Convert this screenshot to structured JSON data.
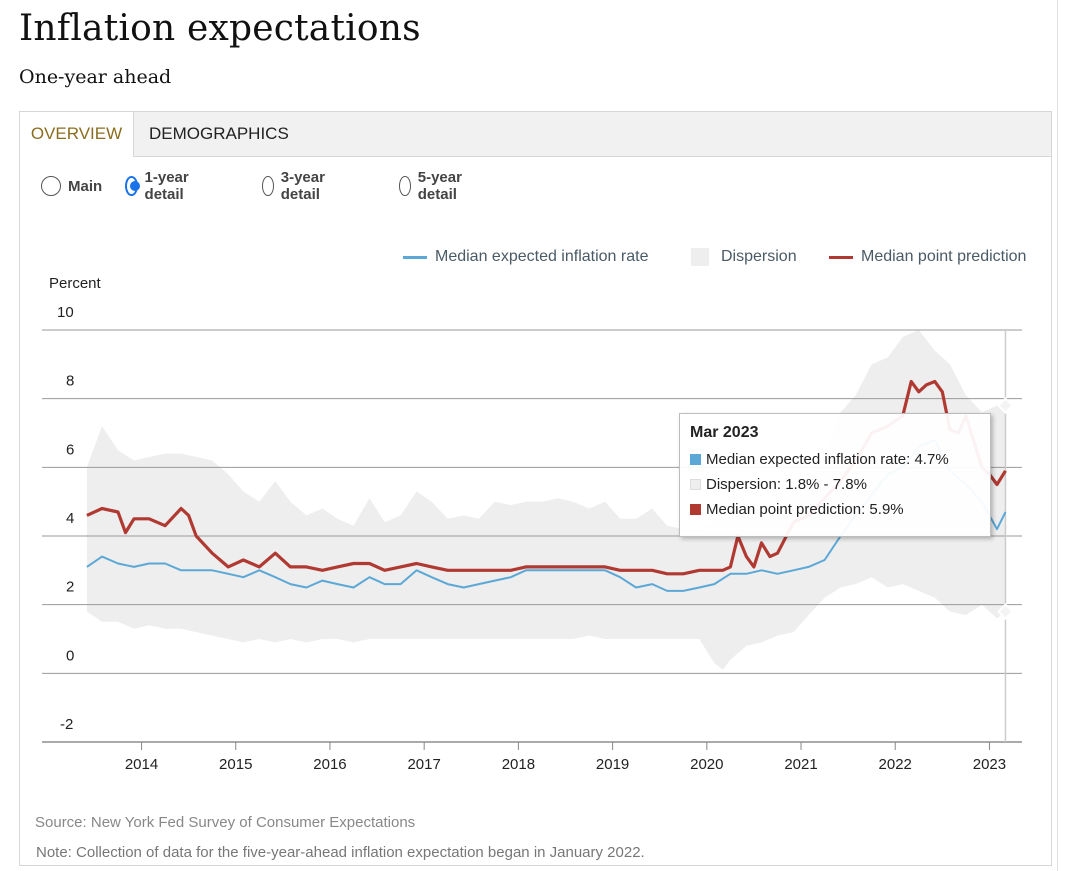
{
  "header": {
    "title": "Inflation expectations",
    "subtitle": "One-year ahead"
  },
  "tabs": [
    {
      "label": "OVERVIEW",
      "active": true
    },
    {
      "label": "DEMOGRAPHICS",
      "active": false
    }
  ],
  "radios": [
    {
      "label": "Main",
      "checked": false
    },
    {
      "label": "1-year detail",
      "checked": true
    },
    {
      "label": "3-year detail",
      "checked": false
    },
    {
      "label": "5-year detail",
      "checked": false
    }
  ],
  "colors": {
    "median_expected": "#5ba8d6",
    "dispersion": "#eeeeee",
    "median_point": "#b03a32",
    "active_tab": "#8a6d1e",
    "radio_accent": "#1a73e8"
  },
  "tooltip": {
    "title": "Mar 2023",
    "rows": [
      {
        "text": "Median expected inflation rate: 4.7%",
        "color": "#5ba8d6"
      },
      {
        "text": "Dispersion: 1.8% - 7.8%",
        "color": "#eeeeee"
      },
      {
        "text": "Median point prediction: 5.9%",
        "color": "#b03a32"
      }
    ]
  },
  "footer": {
    "source": "Source: New York Fed Survey of Consumer Expectations",
    "note": "Note: Collection of data for the five-year-ahead inflation expectation began in January 2022."
  },
  "chart_data": {
    "type": "line",
    "title": "",
    "ylabel": "Percent",
    "xlabel": "",
    "ylim": [
      -2,
      10
    ],
    "xlim": [
      2013.4,
      2023.25
    ],
    "yticks": [
      "10",
      "8",
      "6",
      "4",
      "2",
      "0",
      "-2"
    ],
    "xticks": [
      "2014",
      "2015",
      "2016",
      "2017",
      "2018",
      "2019",
      "2020",
      "2021",
      "2022",
      "2023"
    ],
    "grid": true,
    "legend_position": "top-right",
    "series": [
      {
        "name": "Median expected inflation rate",
        "x": [
          2013.42,
          2013.58,
          2013.75,
          2013.92,
          2014.08,
          2014.25,
          2014.42,
          2014.58,
          2014.75,
          2014.92,
          2015.08,
          2015.25,
          2015.42,
          2015.58,
          2015.75,
          2015.92,
          2016.08,
          2016.25,
          2016.42,
          2016.58,
          2016.75,
          2016.92,
          2017.08,
          2017.25,
          2017.42,
          2017.58,
          2017.75,
          2017.92,
          2018.08,
          2018.25,
          2018.42,
          2018.58,
          2018.75,
          2018.92,
          2019.08,
          2019.25,
          2019.42,
          2019.58,
          2019.75,
          2019.92,
          2020.08,
          2020.25,
          2020.42,
          2020.58,
          2020.75,
          2020.92,
          2021.08,
          2021.25,
          2021.42,
          2021.58,
          2021.75,
          2021.92,
          2022.08,
          2022.25,
          2022.42,
          2022.58,
          2022.75,
          2022.92,
          2023.08,
          2023.17
        ],
        "values": [
          3.1,
          3.4,
          3.2,
          3.1,
          3.2,
          3.2,
          3.0,
          3.0,
          3.0,
          2.9,
          2.8,
          3.0,
          2.8,
          2.6,
          2.5,
          2.7,
          2.6,
          2.5,
          2.8,
          2.6,
          2.6,
          3.0,
          2.8,
          2.6,
          2.5,
          2.6,
          2.7,
          2.8,
          3.0,
          3.0,
          3.0,
          3.0,
          3.0,
          3.0,
          2.8,
          2.5,
          2.6,
          2.4,
          2.4,
          2.5,
          2.6,
          2.9,
          2.9,
          3.0,
          2.9,
          3.0,
          3.1,
          3.3,
          4.0,
          4.6,
          5.2,
          5.8,
          6.0,
          6.6,
          6.8,
          5.9,
          5.5,
          5.0,
          4.2,
          4.7
        ]
      },
      {
        "name": "Median point prediction",
        "x": [
          2013.42,
          2013.58,
          2013.75,
          2013.83,
          2013.92,
          2014.08,
          2014.25,
          2014.42,
          2014.5,
          2014.58,
          2014.75,
          2014.92,
          2015.08,
          2015.25,
          2015.42,
          2015.58,
          2015.75,
          2015.92,
          2016.08,
          2016.25,
          2016.42,
          2016.58,
          2016.75,
          2016.92,
          2017.08,
          2017.25,
          2017.42,
          2017.58,
          2017.75,
          2017.92,
          2018.08,
          2018.25,
          2018.42,
          2018.58,
          2018.75,
          2018.92,
          2019.08,
          2019.25,
          2019.42,
          2019.58,
          2019.75,
          2019.92,
          2020.08,
          2020.17,
          2020.25,
          2020.33,
          2020.42,
          2020.5,
          2020.58,
          2020.67,
          2020.75,
          2020.92,
          2021.08,
          2021.25,
          2021.42,
          2021.58,
          2021.75,
          2021.92,
          2022.08,
          2022.17,
          2022.25,
          2022.33,
          2022.42,
          2022.5,
          2022.58,
          2022.67,
          2022.75,
          2022.83,
          2022.92,
          2023.0,
          2023.08,
          2023.17
        ],
        "values": [
          4.6,
          4.8,
          4.7,
          4.1,
          4.5,
          4.5,
          4.3,
          4.8,
          4.6,
          4.0,
          3.5,
          3.1,
          3.3,
          3.1,
          3.5,
          3.1,
          3.1,
          3.0,
          3.1,
          3.2,
          3.2,
          3.0,
          3.1,
          3.2,
          3.1,
          3.0,
          3.0,
          3.0,
          3.0,
          3.0,
          3.1,
          3.1,
          3.1,
          3.1,
          3.1,
          3.1,
          3.0,
          3.0,
          3.0,
          2.9,
          2.9,
          3.0,
          3.0,
          3.0,
          3.1,
          4.0,
          3.4,
          3.1,
          3.8,
          3.4,
          3.5,
          4.4,
          4.6,
          5.1,
          5.6,
          6.2,
          7.0,
          7.2,
          7.5,
          8.5,
          8.2,
          8.4,
          8.5,
          8.2,
          7.1,
          7.0,
          7.5,
          6.8,
          6.0,
          5.8,
          5.5,
          5.9
        ]
      }
    ],
    "dispersion": {
      "name": "Dispersion",
      "x": [
        2013.42,
        2013.58,
        2013.75,
        2013.92,
        2014.08,
        2014.25,
        2014.42,
        2014.58,
        2014.75,
        2014.92,
        2015.08,
        2015.25,
        2015.42,
        2015.58,
        2015.75,
        2015.92,
        2016.08,
        2016.25,
        2016.42,
        2016.58,
        2016.75,
        2016.92,
        2017.08,
        2017.25,
        2017.42,
        2017.58,
        2017.75,
        2017.92,
        2018.08,
        2018.25,
        2018.42,
        2018.58,
        2018.75,
        2018.92,
        2019.08,
        2019.25,
        2019.42,
        2019.58,
        2019.75,
        2019.92,
        2020.08,
        2020.17,
        2020.25,
        2020.42,
        2020.58,
        2020.75,
        2020.92,
        2021.08,
        2021.25,
        2021.42,
        2021.58,
        2021.75,
        2021.92,
        2022.08,
        2022.25,
        2022.42,
        2022.58,
        2022.75,
        2022.92,
        2023.08,
        2023.17
      ],
      "upper": [
        6.0,
        7.2,
        6.5,
        6.2,
        6.3,
        6.4,
        6.4,
        6.3,
        6.2,
        5.8,
        5.3,
        5.0,
        5.6,
        5.0,
        4.6,
        4.8,
        4.5,
        4.3,
        5.1,
        4.4,
        4.6,
        5.3,
        5.0,
        4.5,
        4.6,
        4.5,
        5.0,
        4.9,
        5.0,
        5.0,
        5.1,
        5.0,
        4.8,
        5.0,
        4.5,
        4.5,
        4.8,
        4.3,
        4.2,
        4.2,
        4.4,
        4.6,
        5.0,
        4.8,
        4.7,
        4.8,
        5.3,
        5.8,
        6.5,
        7.6,
        8.1,
        9.0,
        9.2,
        9.8,
        10.0,
        9.4,
        9.0,
        8.1,
        7.6,
        7.8,
        7.8
      ],
      "lower": [
        1.8,
        1.5,
        1.5,
        1.3,
        1.4,
        1.3,
        1.3,
        1.2,
        1.1,
        1.0,
        0.9,
        1.0,
        0.9,
        1.0,
        0.9,
        1.0,
        1.0,
        0.9,
        1.0,
        1.0,
        1.0,
        1.0,
        1.0,
        1.0,
        1.0,
        1.0,
        1.0,
        1.0,
        1.0,
        1.0,
        1.0,
        1.0,
        1.1,
        1.0,
        1.0,
        1.0,
        1.0,
        1.0,
        1.0,
        1.0,
        0.3,
        0.1,
        0.4,
        0.8,
        0.9,
        1.1,
        1.2,
        1.7,
        2.2,
        2.5,
        2.6,
        2.8,
        2.5,
        2.6,
        2.4,
        2.2,
        1.8,
        1.7,
        2.0,
        1.6,
        1.8
      ]
    }
  }
}
